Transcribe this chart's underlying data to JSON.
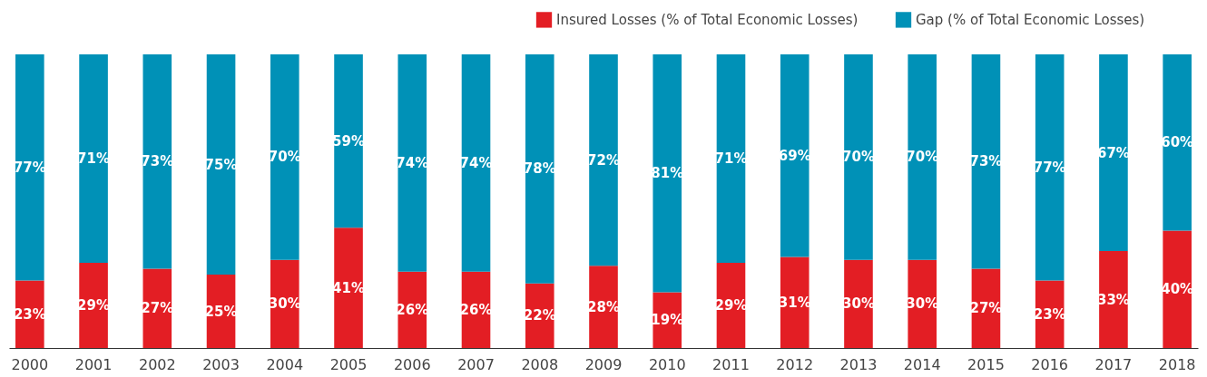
{
  "chart_data": {
    "type": "bar",
    "stacked": true,
    "legend": "top right",
    "tick_labels": "x",
    "grid": false,
    "categories": [
      "2000",
      "2001",
      "2002",
      "2003",
      "2004",
      "2005",
      "2006",
      "2007",
      "2008",
      "2009",
      "2010",
      "2011",
      "2012",
      "2013",
      "2014",
      "2015",
      "2016",
      "2017",
      "2018"
    ],
    "series": [
      {
        "name": "Insured Losses (% of Total Economic Losses)",
        "color": "#e31e24",
        "values": [
          23,
          29,
          27,
          25,
          30,
          41,
          26,
          26,
          22,
          28,
          19,
          29,
          31,
          30,
          30,
          27,
          23,
          33,
          40
        ],
        "value_labels": [
          "23%",
          "29%",
          "27%",
          "25%",
          "30%",
          "41%",
          "26%",
          "26%",
          "22%",
          "28%",
          "19%",
          "29%",
          "31%",
          "30%",
          "30%",
          "27%",
          "23%",
          "33%",
          "40%"
        ]
      },
      {
        "name": "Gap (% of Total Economic Losses)",
        "color": "#0091b7",
        "values": [
          77,
          71,
          73,
          75,
          70,
          59,
          74,
          74,
          78,
          72,
          81,
          71,
          69,
          70,
          70,
          73,
          77,
          67,
          60
        ],
        "value_labels": [
          "77%",
          "71%",
          "73%",
          "75%",
          "70%",
          "59%",
          "74%",
          "74%",
          "78%",
          "72%",
          "81%",
          "71%",
          "69%",
          "70%",
          "70%",
          "73%",
          "77%",
          "67%",
          "60%"
        ]
      }
    ]
  }
}
